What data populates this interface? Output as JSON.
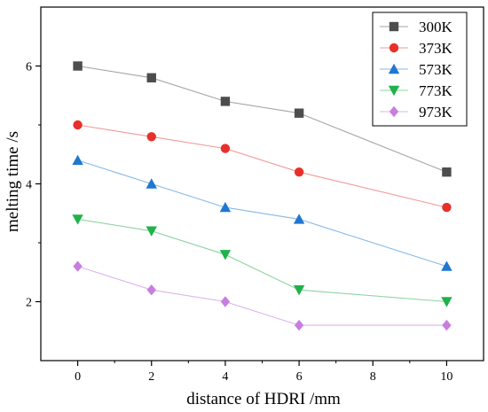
{
  "chart_data": {
    "type": "line",
    "xlabel": "distance of HDRI /mm",
    "ylabel": "melting time /s",
    "xlim": [
      -1,
      11
    ],
    "ylim": [
      1,
      7
    ],
    "x_ticks": [
      0,
      2,
      4,
      6,
      8,
      10
    ],
    "y_ticks": [
      2,
      4,
      6
    ],
    "x_tick_labels": [
      "0",
      "2",
      "4",
      "6",
      "8",
      "10"
    ],
    "y_tick_labels": [
      "2",
      "4",
      "6"
    ],
    "x": [
      0,
      2,
      4,
      6,
      10
    ],
    "grid": false,
    "legend_position": "top-right",
    "series": [
      {
        "name": "300K",
        "values": [
          6.0,
          5.8,
          5.4,
          5.2,
          4.2
        ],
        "color": "#4d4d4d",
        "line_color": "#a6a6a6",
        "marker": "square"
      },
      {
        "name": "373K",
        "values": [
          5.0,
          4.8,
          4.6,
          4.2,
          3.6
        ],
        "color": "#e8302a",
        "line_color": "#f09a97",
        "marker": "circle"
      },
      {
        "name": "573K",
        "values": [
          4.4,
          4.0,
          3.6,
          3.4,
          2.6
        ],
        "color": "#1f77d0",
        "line_color": "#86b8e6",
        "marker": "triangle-up"
      },
      {
        "name": "773K",
        "values": [
          3.4,
          3.2,
          2.8,
          2.2,
          2.0
        ],
        "color": "#1fb24a",
        "line_color": "#8fd4a2",
        "marker": "triangle-down"
      },
      {
        "name": "973K",
        "values": [
          2.6,
          2.2,
          2.0,
          1.6,
          1.6
        ],
        "color": "#c77ee0",
        "line_color": "#dcb3ec",
        "marker": "diamond"
      }
    ]
  }
}
